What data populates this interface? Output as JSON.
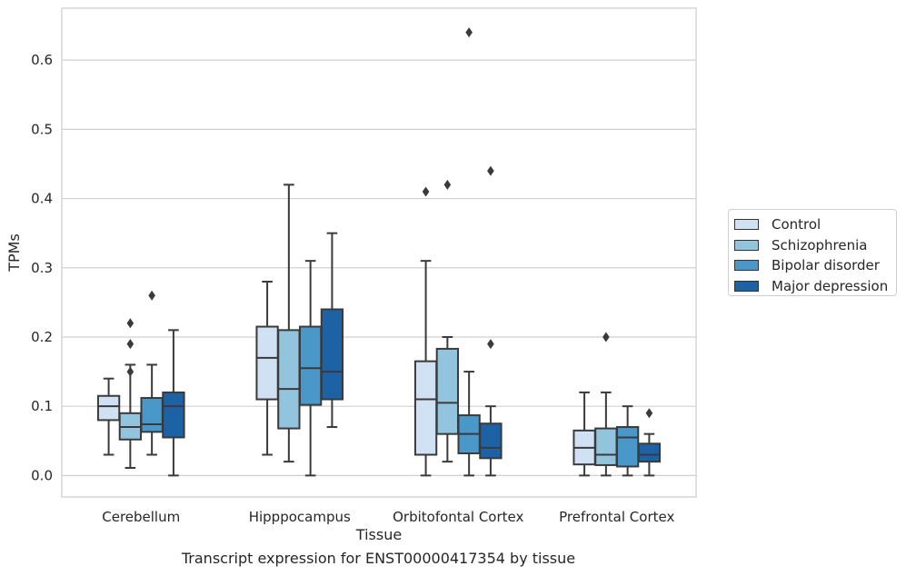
{
  "caption": "Transcript expression for ENST00000417354 by tissue",
  "chart_data": {
    "type": "box",
    "title": "",
    "xlabel": "Tissue",
    "ylabel": "TPMs",
    "ylim": [
      -0.031,
      0.675
    ],
    "yticks": [
      0.0,
      0.1,
      0.2,
      0.3,
      0.4,
      0.5,
      0.6
    ],
    "ytick_labels": [
      "0.0",
      "0.1",
      "0.2",
      "0.3",
      "0.4",
      "0.5",
      "0.6"
    ],
    "grid": "horizontal",
    "legend_position": "right",
    "categories": [
      "Cerebellum",
      "Hipppocampus",
      "Orbitofontal Cortex",
      "Prefrontal Cortex"
    ],
    "series": [
      {
        "name": "Control",
        "color": "#cfe1f2",
        "boxes": [
          {
            "whislo": 0.03,
            "q1": 0.08,
            "med": 0.1,
            "q3": 0.115,
            "whishi": 0.14,
            "fliers": []
          },
          {
            "whislo": 0.03,
            "q1": 0.11,
            "med": 0.17,
            "q3": 0.215,
            "whishi": 0.28,
            "fliers": []
          },
          {
            "whislo": 0.0,
            "q1": 0.03,
            "med": 0.11,
            "q3": 0.165,
            "whishi": 0.31,
            "fliers": [
              0.41
            ]
          },
          {
            "whislo": 0.0,
            "q1": 0.016,
            "med": 0.04,
            "q3": 0.065,
            "whishi": 0.12,
            "fliers": []
          }
        ]
      },
      {
        "name": "Schizophrenia",
        "color": "#93c4de",
        "boxes": [
          {
            "whislo": 0.011,
            "q1": 0.052,
            "med": 0.07,
            "q3": 0.09,
            "whishi": 0.16,
            "fliers": [
              0.15,
              0.19,
              0.22
            ]
          },
          {
            "whislo": 0.02,
            "q1": 0.068,
            "med": 0.125,
            "q3": 0.21,
            "whishi": 0.42,
            "fliers": []
          },
          {
            "whislo": 0.02,
            "q1": 0.06,
            "med": 0.105,
            "q3": 0.183,
            "whishi": 0.2,
            "fliers": [
              0.42
            ]
          },
          {
            "whislo": 0.0,
            "q1": 0.015,
            "med": 0.03,
            "q3": 0.068,
            "whishi": 0.12,
            "fliers": [
              0.2
            ]
          }
        ]
      },
      {
        "name": "Bipolar disorder",
        "color": "#4a98c9",
        "boxes": [
          {
            "whislo": 0.03,
            "q1": 0.063,
            "med": 0.074,
            "q3": 0.112,
            "whishi": 0.16,
            "fliers": [
              0.26
            ]
          },
          {
            "whislo": 0.0,
            "q1": 0.102,
            "med": 0.155,
            "q3": 0.215,
            "whishi": 0.31,
            "fliers": []
          },
          {
            "whislo": 0.0,
            "q1": 0.032,
            "med": 0.06,
            "q3": 0.087,
            "whishi": 0.15,
            "fliers": [
              0.64
            ]
          },
          {
            "whislo": 0.0,
            "q1": 0.013,
            "med": 0.055,
            "q3": 0.07,
            "whishi": 0.1,
            "fliers": []
          }
        ]
      },
      {
        "name": "Major depression",
        "color": "#1e62a6",
        "boxes": [
          {
            "whislo": 0.0,
            "q1": 0.055,
            "med": 0.1,
            "q3": 0.12,
            "whishi": 0.21,
            "fliers": []
          },
          {
            "whislo": 0.07,
            "q1": 0.11,
            "med": 0.15,
            "q3": 0.24,
            "whishi": 0.35,
            "fliers": []
          },
          {
            "whislo": 0.0,
            "q1": 0.025,
            "med": 0.04,
            "q3": 0.075,
            "whishi": 0.1,
            "fliers": [
              0.19,
              0.44
            ]
          },
          {
            "whislo": 0.0,
            "q1": 0.02,
            "med": 0.03,
            "q3": 0.046,
            "whishi": 0.06,
            "fliers": [
              0.09
            ]
          }
        ]
      }
    ]
  }
}
